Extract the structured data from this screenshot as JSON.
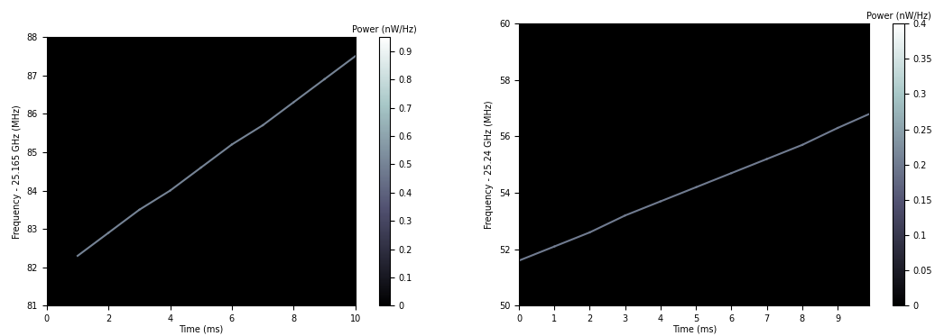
{
  "chart_data": [
    {
      "type": "line",
      "x_label": "Time (ms)",
      "y_label": "Frequency - 25.165 GHz (MHz)",
      "colorbar_label": "Power (nW/Hz)",
      "x": [
        1,
        2,
        3,
        4,
        5,
        6,
        7,
        8,
        9,
        10
      ],
      "series": [
        {
          "values": [
            82.3,
            82.9,
            83.5,
            84.0,
            84.6,
            85.2,
            85.7,
            86.3,
            86.9,
            87.5
          ],
          "power": [
            0.5,
            0.5,
            0.5,
            0.5,
            0.5,
            0.5,
            0.5,
            0.5,
            0.5,
            0.5
          ]
        }
      ],
      "xlim": [
        0,
        10
      ],
      "xticks": [
        0,
        2,
        4,
        6,
        8,
        10
      ],
      "ylim": [
        81,
        88
      ],
      "yticks": [
        81,
        82,
        83,
        84,
        85,
        86,
        87,
        88
      ],
      "colorbar_range": [
        0,
        0.95
      ],
      "colorbar_ticks": [
        0,
        0.1,
        0.2,
        0.3,
        0.4,
        0.5,
        0.6,
        0.7,
        0.8,
        0.9
      ]
    },
    {
      "type": "line",
      "x_label": "Time (ms)",
      "y_label": "Frequency - 25.24 GHz (MHz)",
      "colorbar_label": "Power (nW/Hz)",
      "x": [
        0,
        1,
        2,
        3,
        4,
        5,
        6,
        7,
        8,
        9,
        9.9
      ],
      "series": [
        {
          "values": [
            51.6,
            52.1,
            52.6,
            53.2,
            53.7,
            54.2,
            54.7,
            55.2,
            55.7,
            56.3,
            56.8
          ],
          "power": [
            0.2,
            0.2,
            0.2,
            0.2,
            0.2,
            0.2,
            0.2,
            0.2,
            0.2,
            0.2,
            0.2
          ]
        }
      ],
      "xlim": [
        0,
        9.9
      ],
      "xticks": [
        0,
        1,
        2,
        3,
        4,
        5,
        6,
        7,
        8,
        9
      ],
      "ylim": [
        50,
        60
      ],
      "yticks": [
        50,
        52,
        54,
        56,
        58,
        60
      ],
      "colorbar_range": [
        0,
        0.4
      ],
      "colorbar_ticks": [
        0,
        0.05,
        0.1,
        0.15,
        0.2,
        0.25,
        0.3,
        0.35,
        0.4
      ]
    }
  ]
}
